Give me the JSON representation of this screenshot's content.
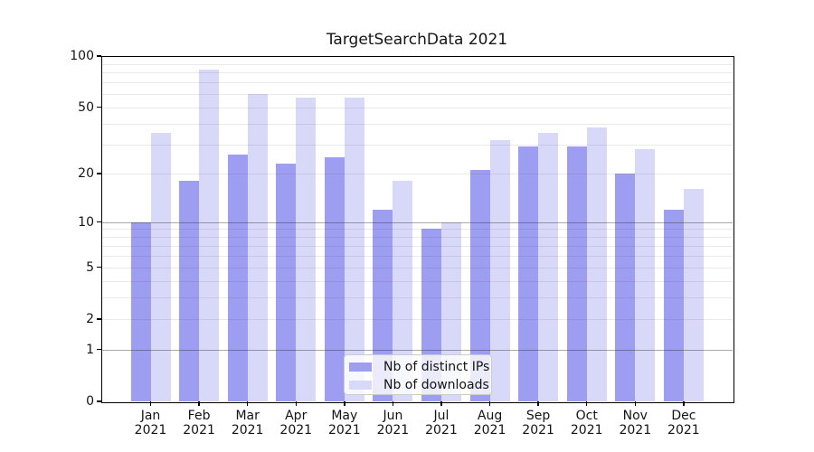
{
  "chart_data": {
    "type": "bar",
    "title": "TargetSearchData 2021",
    "categories": [
      "Jan",
      "Feb",
      "Mar",
      "Apr",
      "May",
      "Jun",
      "Jul",
      "Aug",
      "Sep",
      "Oct",
      "Nov",
      "Dec"
    ],
    "category_year": "2021",
    "series": [
      {
        "name": "Nb of distinct IPs",
        "color": "#9d9df1",
        "values": [
          10,
          18,
          26,
          23,
          25,
          12,
          9,
          21,
          29,
          29,
          20,
          12
        ]
      },
      {
        "name": "Nb of downloads",
        "color": "#d8d8f9",
        "values": [
          35,
          83,
          60,
          57,
          57,
          18,
          10,
          32,
          35,
          38,
          28,
          16
        ]
      }
    ],
    "yscale": "log1p",
    "ylim": [
      0,
      100
    ],
    "yticks": [
      0,
      1,
      2,
      5,
      10,
      20,
      50,
      100
    ],
    "ytick_labels": [
      "0",
      "1",
      "2",
      "5",
      "10",
      "20",
      "50",
      "100"
    ],
    "major_gridlines": [
      1,
      10
    ],
    "minor_gridlines": [
      2,
      3,
      4,
      5,
      6,
      7,
      8,
      9,
      20,
      30,
      40,
      50,
      60,
      70,
      80,
      90
    ],
    "grid": true,
    "legend_position": "lower center-right"
  }
}
